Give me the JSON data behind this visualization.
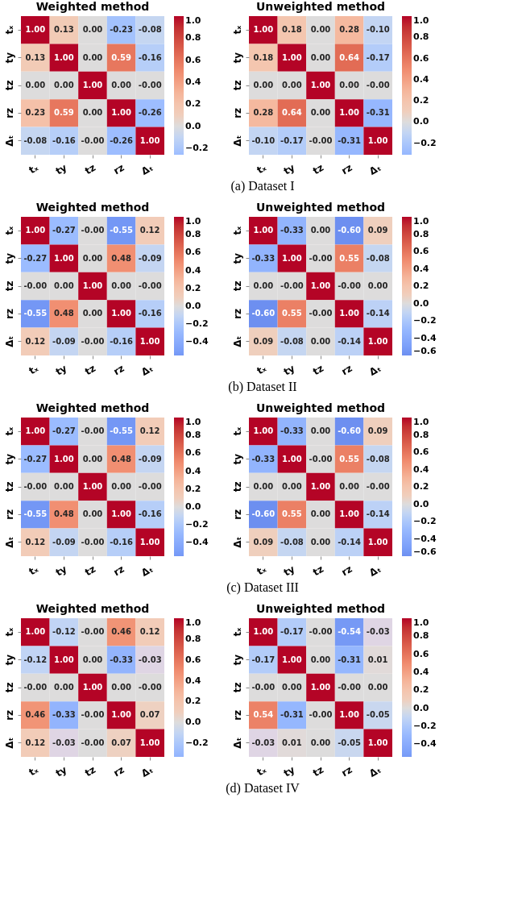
{
  "chart_data": [
    {
      "type": "heatmap",
      "title": "Weighted method",
      "categories": [
        "tₓ",
        "ty",
        "tz",
        "rz",
        "Δₜ"
      ],
      "y_categories": [
        "tₓ",
        "ty",
        "tz",
        "rz",
        "Δₜ"
      ],
      "cells": [
        [
          1.0,
          0.13,
          0.0,
          -0.23,
          -0.08
        ],
        [
          0.13,
          1.0,
          0.0,
          0.59,
          -0.16
        ],
        [
          0.0,
          0.0,
          1.0,
          0.0,
          0.0
        ],
        [
          0.23,
          0.59,
          0.0,
          1.0,
          -0.26
        ],
        [
          -0.08,
          -0.16,
          0.0,
          -0.26,
          1.0
        ]
      ],
      "cell_labels": [
        [
          "1.00",
          "0.13",
          "0.00",
          "-0.23",
          "-0.08"
        ],
        [
          "0.13",
          "1.00",
          "0.00",
          "0.59",
          "-0.16"
        ],
        [
          "0.00",
          "0.00",
          "1.00",
          "0.00",
          "-0.00"
        ],
        [
          "0.23",
          "0.59",
          "0.00",
          "1.00",
          "-0.26"
        ],
        [
          "-0.08",
          "-0.16",
          "-0.00",
          "-0.26",
          "1.00"
        ]
      ],
      "clim": [
        -0.26,
        1.0
      ],
      "cticks": [
        {
          "value": 1.0,
          "label": "1.0"
        },
        {
          "value": 0.8,
          "label": "0.8"
        },
        {
          "value": 0.6,
          "label": "0.6"
        },
        {
          "value": 0.4,
          "label": "0.4"
        },
        {
          "value": 0.2,
          "label": "0.2"
        },
        {
          "value": 0.0,
          "label": "0.0"
        },
        {
          "value": -0.2,
          "label": "−0.2"
        }
      ],
      "annotations": [
        "(a)  Dataset I"
      ]
    },
    {
      "type": "heatmap",
      "title": "Unweighted method",
      "categories": [
        "tₓ",
        "ty",
        "tz",
        "rz",
        "Δₜ"
      ],
      "y_categories": [
        "tₓ",
        "ty",
        "tz",
        "rz",
        "Δₜ"
      ],
      "cells": [
        [
          1.0,
          0.18,
          0.0,
          0.28,
          -0.1
        ],
        [
          0.18,
          1.0,
          0.0,
          0.64,
          -0.17
        ],
        [
          0.0,
          0.0,
          1.0,
          0.0,
          0.0
        ],
        [
          0.28,
          0.64,
          0.0,
          1.0,
          -0.31
        ],
        [
          -0.1,
          -0.17,
          0.0,
          -0.31,
          1.0
        ]
      ],
      "cell_labels": [
        [
          "1.00",
          "0.18",
          "0.00",
          "0.28",
          "-0.10"
        ],
        [
          "0.18",
          "1.00",
          "0.00",
          "0.64",
          "-0.17"
        ],
        [
          "0.00",
          "0.00",
          "1.00",
          "0.00",
          "-0.00"
        ],
        [
          "0.28",
          "0.64",
          "0.00",
          "1.00",
          "-0.31"
        ],
        [
          "-0.10",
          "-0.17",
          "-0.00",
          "-0.31",
          "1.00"
        ]
      ],
      "clim": [
        -0.31,
        1.0
      ],
      "cticks": [
        {
          "value": 1.0,
          "label": "1.0"
        },
        {
          "value": 0.8,
          "label": "0.8"
        },
        {
          "value": 0.6,
          "label": "0.6"
        },
        {
          "value": 0.4,
          "label": "0.4"
        },
        {
          "value": 0.2,
          "label": "0.2"
        },
        {
          "value": 0.0,
          "label": "0.0"
        },
        {
          "value": -0.2,
          "label": "−0.2"
        }
      ]
    },
    {
      "type": "heatmap",
      "title": "Weighted method",
      "categories": [
        "tₓ",
        "ty",
        "tz",
        "rz",
        "Δₜ"
      ],
      "y_categories": [
        "tₓ",
        "ty",
        "tz",
        "rz",
        "Δₜ"
      ],
      "cells": [
        [
          1.0,
          -0.27,
          0.0,
          -0.55,
          0.12
        ],
        [
          -0.27,
          1.0,
          0.0,
          0.48,
          -0.09
        ],
        [
          0.0,
          0.0,
          1.0,
          0.0,
          0.0
        ],
        [
          -0.55,
          0.48,
          0.0,
          1.0,
          -0.16
        ],
        [
          0.12,
          -0.09,
          0.0,
          -0.16,
          1.0
        ]
      ],
      "cell_labels": [
        [
          "1.00",
          "-0.27",
          "-0.00",
          "-0.55",
          "0.12"
        ],
        [
          "-0.27",
          "1.00",
          "0.00",
          "0.48",
          "-0.09"
        ],
        [
          "-0.00",
          "0.00",
          "1.00",
          "0.00",
          "-0.00"
        ],
        [
          "-0.55",
          "0.48",
          "0.00",
          "1.00",
          "-0.16"
        ],
        [
          "0.12",
          "-0.09",
          "-0.00",
          "-0.16",
          "1.00"
        ]
      ],
      "clim": [
        -0.55,
        1.0
      ],
      "cticks": [
        {
          "value": 1.0,
          "label": "1.0"
        },
        {
          "value": 0.8,
          "label": "0.8"
        },
        {
          "value": 0.6,
          "label": "0.6"
        },
        {
          "value": 0.4,
          "label": "0.4"
        },
        {
          "value": 0.2,
          "label": "0.2"
        },
        {
          "value": 0.0,
          "label": "0.0"
        },
        {
          "value": -0.2,
          "label": "−0.2"
        },
        {
          "value": -0.4,
          "label": "−0.4"
        }
      ],
      "annotations": [
        "(b)  Dataset II"
      ]
    },
    {
      "type": "heatmap",
      "title": "Unweighted method",
      "categories": [
        "tₓ",
        "ty",
        "tz",
        "rz",
        "Δₜ"
      ],
      "y_categories": [
        "tₓ",
        "ty",
        "tz",
        "rz",
        "Δₜ"
      ],
      "cells": [
        [
          1.0,
          -0.33,
          0.0,
          -0.6,
          0.09
        ],
        [
          -0.33,
          1.0,
          0.0,
          0.55,
          -0.08
        ],
        [
          0.0,
          0.0,
          1.0,
          0.0,
          0.0
        ],
        [
          -0.6,
          0.55,
          0.0,
          1.0,
          -0.14
        ],
        [
          0.09,
          -0.08,
          0.0,
          -0.14,
          1.0
        ]
      ],
      "cell_labels": [
        [
          "1.00",
          "-0.33",
          "0.00",
          "-0.60",
          "0.09"
        ],
        [
          "-0.33",
          "1.00",
          "-0.00",
          "0.55",
          "-0.08"
        ],
        [
          "0.00",
          "-0.00",
          "1.00",
          "-0.00",
          "0.00"
        ],
        [
          "-0.60",
          "0.55",
          "-0.00",
          "1.00",
          "-0.14"
        ],
        [
          "0.09",
          "-0.08",
          "0.00",
          "-0.14",
          "1.00"
        ]
      ],
      "clim": [
        -0.6,
        1.0
      ],
      "cticks": [
        {
          "value": 1.0,
          "label": "1.0"
        },
        {
          "value": 0.8,
          "label": "0.8"
        },
        {
          "value": 0.6,
          "label": "0.6"
        },
        {
          "value": 0.4,
          "label": "0.4"
        },
        {
          "value": 0.2,
          "label": "0.2"
        },
        {
          "value": 0.0,
          "label": "0.0"
        },
        {
          "value": -0.2,
          "label": "−0.2"
        },
        {
          "value": -0.4,
          "label": "−0.4"
        },
        {
          "value": -0.6,
          "label": "−0.6"
        }
      ]
    },
    {
      "type": "heatmap",
      "title": "Weighted method",
      "categories": [
        "tₓ",
        "ty",
        "tz",
        "rz",
        "Δₜ"
      ],
      "y_categories": [
        "tₓ",
        "ty",
        "tz",
        "rz",
        "Δₜ"
      ],
      "cells": [
        [
          1.0,
          -0.27,
          0.0,
          -0.55,
          0.12
        ],
        [
          -0.27,
          1.0,
          0.0,
          0.48,
          -0.09
        ],
        [
          0.0,
          0.0,
          1.0,
          0.0,
          0.0
        ],
        [
          -0.55,
          0.48,
          0.0,
          1.0,
          -0.16
        ],
        [
          0.12,
          -0.09,
          0.0,
          -0.16,
          1.0
        ]
      ],
      "cell_labels": [
        [
          "1.00",
          "-0.27",
          "-0.00",
          "-0.55",
          "0.12"
        ],
        [
          "-0.27",
          "1.00",
          "0.00",
          "0.48",
          "-0.09"
        ],
        [
          "-0.00",
          "0.00",
          "1.00",
          "0.00",
          "-0.00"
        ],
        [
          "-0.55",
          "0.48",
          "0.00",
          "1.00",
          "-0.16"
        ],
        [
          "0.12",
          "-0.09",
          "-0.00",
          "-0.16",
          "1.00"
        ]
      ],
      "clim": [
        -0.55,
        1.0
      ],
      "cticks": [
        {
          "value": 1.0,
          "label": "1.0"
        },
        {
          "value": 0.8,
          "label": "0.8"
        },
        {
          "value": 0.6,
          "label": "0.6"
        },
        {
          "value": 0.4,
          "label": "0.4"
        },
        {
          "value": 0.2,
          "label": "0.2"
        },
        {
          "value": 0.0,
          "label": "0.0"
        },
        {
          "value": -0.2,
          "label": "−0.2"
        },
        {
          "value": -0.4,
          "label": "−0.4"
        }
      ],
      "annotations": [
        "(c)  Dataset III"
      ]
    },
    {
      "type": "heatmap",
      "title": "Unweighted method",
      "categories": [
        "tₓ",
        "ty",
        "tz",
        "rz",
        "Δₜ"
      ],
      "y_categories": [
        "tₓ",
        "ty",
        "tz",
        "rz",
        "Δₜ"
      ],
      "cells": [
        [
          1.0,
          -0.33,
          0.0,
          -0.6,
          0.09
        ],
        [
          -0.33,
          1.0,
          0.0,
          0.55,
          -0.08
        ],
        [
          0.0,
          0.0,
          1.0,
          0.0,
          0.0
        ],
        [
          -0.6,
          0.55,
          0.0,
          1.0,
          -0.14
        ],
        [
          0.09,
          -0.08,
          0.0,
          -0.14,
          1.0
        ]
      ],
      "cell_labels": [
        [
          "1.00",
          "-0.33",
          "0.00",
          "-0.60",
          "0.09"
        ],
        [
          "-0.33",
          "1.00",
          "-0.00",
          "0.55",
          "-0.08"
        ],
        [
          "0.00",
          "0.00",
          "1.00",
          "0.00",
          "-0.00"
        ],
        [
          "-0.60",
          "0.55",
          "0.00",
          "1.00",
          "-0.14"
        ],
        [
          "0.09",
          "-0.08",
          "0.00",
          "-0.14",
          "1.00"
        ]
      ],
      "clim": [
        -0.6,
        1.0
      ],
      "cticks": [
        {
          "value": 1.0,
          "label": "1.0"
        },
        {
          "value": 0.8,
          "label": "0.8"
        },
        {
          "value": 0.6,
          "label": "0.6"
        },
        {
          "value": 0.4,
          "label": "0.4"
        },
        {
          "value": 0.2,
          "label": "0.2"
        },
        {
          "value": 0.0,
          "label": "0.0"
        },
        {
          "value": -0.2,
          "label": "−0.2"
        },
        {
          "value": -0.4,
          "label": "−0.4"
        },
        {
          "value": -0.6,
          "label": "−0.6"
        }
      ]
    },
    {
      "type": "heatmap",
      "title": "Weighted method",
      "categories": [
        "tₓ",
        "ty",
        "tz",
        "rz",
        "Δₜ"
      ],
      "y_categories": [
        "tₓ",
        "ty",
        "tz",
        "rz",
        "Δₜ"
      ],
      "cells": [
        [
          1.0,
          -0.12,
          0.0,
          0.46,
          0.12
        ],
        [
          -0.12,
          1.0,
          0.0,
          -0.33,
          -0.03
        ],
        [
          0.0,
          0.0,
          1.0,
          0.0,
          0.0
        ],
        [
          0.46,
          -0.33,
          0.0,
          1.0,
          0.07
        ],
        [
          0.12,
          -0.03,
          0.0,
          0.07,
          1.0
        ]
      ],
      "cell_labels": [
        [
          "1.00",
          "-0.12",
          "-0.00",
          "0.46",
          "0.12"
        ],
        [
          "-0.12",
          "1.00",
          "0.00",
          "-0.33",
          "-0.03"
        ],
        [
          "-0.00",
          "0.00",
          "1.00",
          "0.00",
          "-0.00"
        ],
        [
          "0.46",
          "-0.33",
          "-0.00",
          "1.00",
          "0.07"
        ],
        [
          "0.12",
          "-0.03",
          "-0.00",
          "0.07",
          "1.00"
        ]
      ],
      "clim": [
        -0.33,
        1.0
      ],
      "cticks": [
        {
          "value": 1.0,
          "label": "1.0"
        },
        {
          "value": 0.8,
          "label": "0.8"
        },
        {
          "value": 0.6,
          "label": "0.6"
        },
        {
          "value": 0.4,
          "label": "0.4"
        },
        {
          "value": 0.2,
          "label": "0.2"
        },
        {
          "value": 0.0,
          "label": "0.0"
        },
        {
          "value": -0.2,
          "label": "−0.2"
        }
      ],
      "annotations": [
        "(d)  Dataset IV"
      ]
    },
    {
      "type": "heatmap",
      "title": "Unweighted method",
      "categories": [
        "tₓ",
        "ty",
        "tz",
        "rz",
        "Δₜ"
      ],
      "y_categories": [
        "tₓ",
        "ty",
        "tz",
        "rz",
        "Δₜ"
      ],
      "cells": [
        [
          1.0,
          -0.17,
          0.0,
          -0.54,
          -0.03
        ],
        [
          -0.17,
          1.0,
          0.0,
          -0.31,
          0.01
        ],
        [
          0.0,
          0.0,
          1.0,
          0.0,
          0.0
        ],
        [
          0.54,
          -0.31,
          0.0,
          1.0,
          -0.05
        ],
        [
          -0.03,
          0.01,
          0.0,
          -0.05,
          1.0
        ]
      ],
      "cell_labels": [
        [
          "1.00",
          "-0.17",
          "-0.00",
          "-0.54",
          "-0.03"
        ],
        [
          "-0.17",
          "1.00",
          "0.00",
          "-0.31",
          "0.01"
        ],
        [
          "-0.00",
          "0.00",
          "1.00",
          "-0.00",
          "0.00"
        ],
        [
          "0.54",
          "-0.31",
          "-0.00",
          "1.00",
          "-0.05"
        ],
        [
          "-0.03",
          "0.01",
          "0.00",
          "-0.05",
          "1.00"
        ]
      ],
      "clim": [
        -0.54,
        1.0
      ],
      "cticks": [
        {
          "value": 1.0,
          "label": "1.0"
        },
        {
          "value": 0.8,
          "label": "0.8"
        },
        {
          "value": 0.6,
          "label": "0.6"
        },
        {
          "value": 0.4,
          "label": "0.4"
        },
        {
          "value": 0.2,
          "label": "0.2"
        },
        {
          "value": 0.0,
          "label": "0.0"
        },
        {
          "value": -0.2,
          "label": "−0.2"
        },
        {
          "value": -0.4,
          "label": "−0.4"
        }
      ]
    }
  ]
}
